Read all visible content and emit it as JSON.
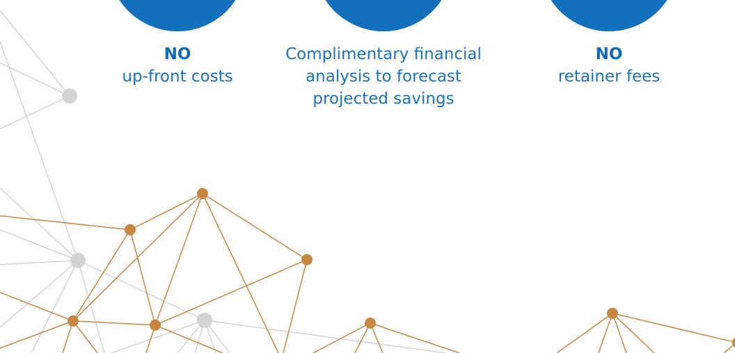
{
  "features": [
    {
      "heading": "NO",
      "lines": [
        "up-front costs"
      ]
    },
    {
      "lines": [
        "Complimentary financial",
        "analysis to forecast",
        "projected savings"
      ]
    },
    {
      "heading": "NO",
      "lines": [
        "retainer fees"
      ]
    }
  ]
}
